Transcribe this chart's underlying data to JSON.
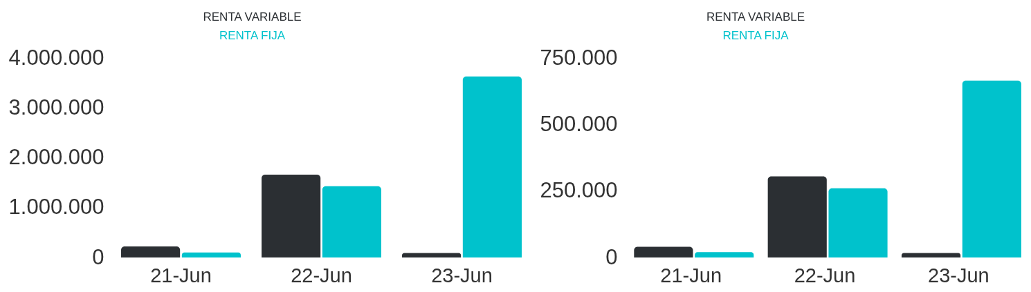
{
  "chart_data": [
    {
      "type": "bar",
      "categories": [
        "21-Jun",
        "22-Jun",
        "23-Jun"
      ],
      "series": [
        {
          "name": "RENTA VARIABLE",
          "color": "#2b2f33",
          "values": [
            220000,
            1660000,
            90000
          ]
        },
        {
          "name": "RENTA FIJA",
          "color": "#00c2cc",
          "values": [
            100000,
            1430000,
            3630000
          ]
        }
      ],
      "ylim": [
        0,
        4000000
      ],
      "yticks": [
        {
          "value": 0,
          "label": "0"
        },
        {
          "value": 1000000,
          "label": "1.000.000"
        },
        {
          "value": 2000000,
          "label": "2.000.000"
        },
        {
          "value": 3000000,
          "label": "3.000.000"
        },
        {
          "value": 4000000,
          "label": "4.000.000"
        }
      ],
      "legend": "top"
    },
    {
      "type": "bar",
      "categories": [
        "21-Jun",
        "22-Jun",
        "23-Jun"
      ],
      "series": [
        {
          "name": "RENTA VARIABLE",
          "color": "#2b2f33",
          "values": [
            40000,
            305000,
            17000
          ]
        },
        {
          "name": "RENTA FIJA",
          "color": "#00c2cc",
          "values": [
            20000,
            260000,
            665000
          ]
        }
      ],
      "ylim": [
        0,
        750000
      ],
      "yticks": [
        {
          "value": 0,
          "label": "0"
        },
        {
          "value": 250000,
          "label": "250.000"
        },
        {
          "value": 500000,
          "label": "500.000"
        },
        {
          "value": 750000,
          "label": "750.000"
        }
      ],
      "legend": "top"
    }
  ]
}
